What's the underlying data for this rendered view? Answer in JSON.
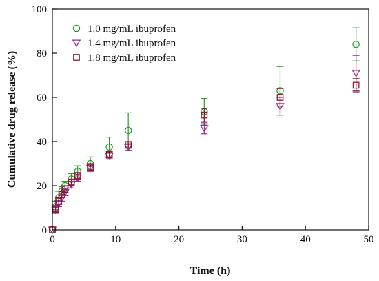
{
  "chart_data": {
    "type": "scatter",
    "title": "",
    "xlabel": "Time (h)",
    "ylabel": "Cumulative drug release (%)",
    "xlim": [
      0,
      50
    ],
    "ylim": [
      0,
      100
    ],
    "xticks": [
      0,
      10,
      20,
      30,
      40,
      50
    ],
    "yticks": [
      0,
      20,
      40,
      60,
      80,
      100
    ],
    "grid": false,
    "legend_position": "top-left",
    "series": [
      {
        "name": "1.0 mg/mL ibuprofen",
        "marker": "circle",
        "color": "#2e9a2e",
        "x": [
          0,
          0.5,
          1,
          1.5,
          2,
          3,
          4,
          6,
          9,
          12,
          24,
          36,
          48
        ],
        "y": [
          0,
          10.5,
          14.5,
          17.5,
          20,
          23,
          26.5,
          30,
          37.5,
          45,
          53.5,
          63,
          84
        ],
        "error": [
          0,
          2.5,
          3,
          2,
          2,
          2.5,
          2.5,
          3,
          4.5,
          8,
          6,
          11,
          7.5
        ]
      },
      {
        "name": "1.4 mg/mL ibuprofen",
        "marker": "triangle-down",
        "color": "#9b2c9b",
        "x": [
          0,
          0.5,
          1,
          1.5,
          2,
          3,
          4,
          6,
          9,
          12,
          24,
          36,
          48
        ],
        "y": [
          0,
          9,
          12,
          14.5,
          17,
          20.5,
          23.5,
          28,
          33.5,
          37.5,
          46,
          56,
          71
        ],
        "error": [
          0,
          1.5,
          1.5,
          1.5,
          1.5,
          1.5,
          1.5,
          1.5,
          1.5,
          1.5,
          2.5,
          4,
          8
        ]
      },
      {
        "name": "1.8 mg/mL ibuprofen",
        "marker": "square",
        "color": "#8b1a2a",
        "x": [
          0,
          0.5,
          1,
          1.5,
          2,
          3,
          4,
          6,
          9,
          12,
          24,
          36,
          48
        ],
        "y": [
          0,
          9.5,
          13,
          16,
          18.5,
          21.5,
          24.5,
          28.5,
          34,
          38.5,
          52,
          60,
          65.5
        ],
        "error": [
          0,
          1.5,
          1.5,
          1.5,
          1.5,
          1.5,
          1.5,
          1.5,
          1.5,
          1.5,
          3,
          4,
          3
        ]
      }
    ]
  }
}
